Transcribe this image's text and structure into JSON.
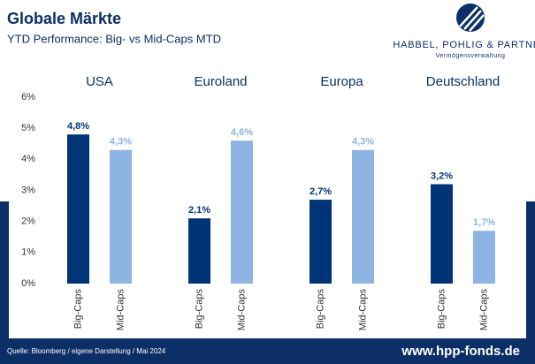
{
  "chart_data": {
    "type": "bar",
    "title": "Globale Märkte",
    "subtitle": "YTD Performance: Big- vs Mid-Caps MTD",
    "logo": {
      "name": "HABBEL, POHLIG & PARTNER",
      "tagline": "Vermögensverwaltung"
    },
    "categories": [
      "USA",
      "Euroland",
      "Europa",
      "Deutschland"
    ],
    "series": [
      {
        "name": "Big-Caps",
        "color": "#003478",
        "values": [
          4.8,
          2.1,
          2.7,
          3.2
        ],
        "value_labels": [
          "4,8%",
          "2,1%",
          "2,7%",
          "3,2%"
        ]
      },
      {
        "name": "Mid-Caps",
        "color": "#8db4e2",
        "values": [
          4.3,
          4.6,
          4.3,
          1.7
        ],
        "value_labels": [
          "4,3%",
          "4,6%",
          "4,3%",
          "1,7%"
        ]
      }
    ],
    "ylim": [
      0,
      6
    ],
    "yticks": [
      {
        "value": 0,
        "label": "0%"
      },
      {
        "value": 1,
        "label": "1%"
      },
      {
        "value": 2,
        "label": "2%"
      },
      {
        "value": 3,
        "label": "3%"
      },
      {
        "value": 4,
        "label": "4%"
      },
      {
        "value": 5,
        "label": "5%"
      },
      {
        "value": 6,
        "label": "6%"
      }
    ],
    "grid": false,
    "footer": {
      "source": "Quelle: Bloomberg / eigene Darstellung / Mai 2024",
      "url": "www.hpp-fonds.de"
    }
  }
}
